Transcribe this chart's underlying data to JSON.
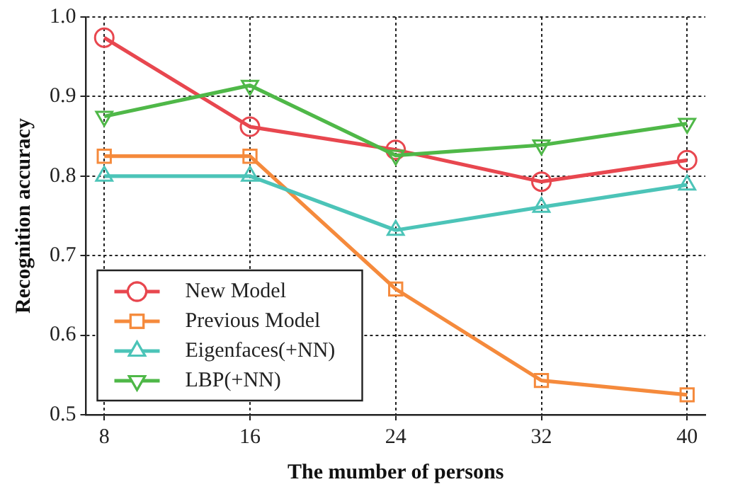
{
  "chart_data": {
    "type": "line",
    "xlabel": "The mumber of persons",
    "ylabel": "Recognition accuracy",
    "x": [
      8,
      16,
      24,
      32,
      40
    ],
    "xlim": [
      7,
      41
    ],
    "xticks": [
      8,
      16,
      24,
      32,
      40
    ],
    "ylim": [
      0.5,
      1.0
    ],
    "yticks": [
      {
        "value": 0.5,
        "label": "0.5"
      },
      {
        "value": 0.6,
        "label": "0.6"
      },
      {
        "value": 0.7,
        "label": "0.7"
      },
      {
        "value": 0.8,
        "label": "0.8"
      },
      {
        "value": 0.9,
        "label": "0.9"
      },
      {
        "value": 1.0,
        "label": "1.0"
      }
    ],
    "grid": true,
    "legend": "bottom left",
    "line_style": "solid",
    "series": [
      {
        "name": "New Model",
        "color": "#e8474f",
        "marker": "circle",
        "values": [
          0.974,
          0.862,
          0.833,
          0.793,
          0.82
        ]
      },
      {
        "name": "Previous Model",
        "color": "#f58a3c",
        "marker": "square",
        "values": [
          0.825,
          0.825,
          0.658,
          0.543,
          0.525
        ]
      },
      {
        "name": "Eigenfaces(+NN)",
        "color": "#4cc4b8",
        "marker": "triangle",
        "values": [
          0.8,
          0.8,
          0.732,
          0.761,
          0.789
        ]
      },
      {
        "name": "LBP(+NN)",
        "color": "#4fb848",
        "marker": "triangle-down",
        "values": [
          0.875,
          0.914,
          0.826,
          0.839,
          0.866
        ]
      }
    ]
  }
}
